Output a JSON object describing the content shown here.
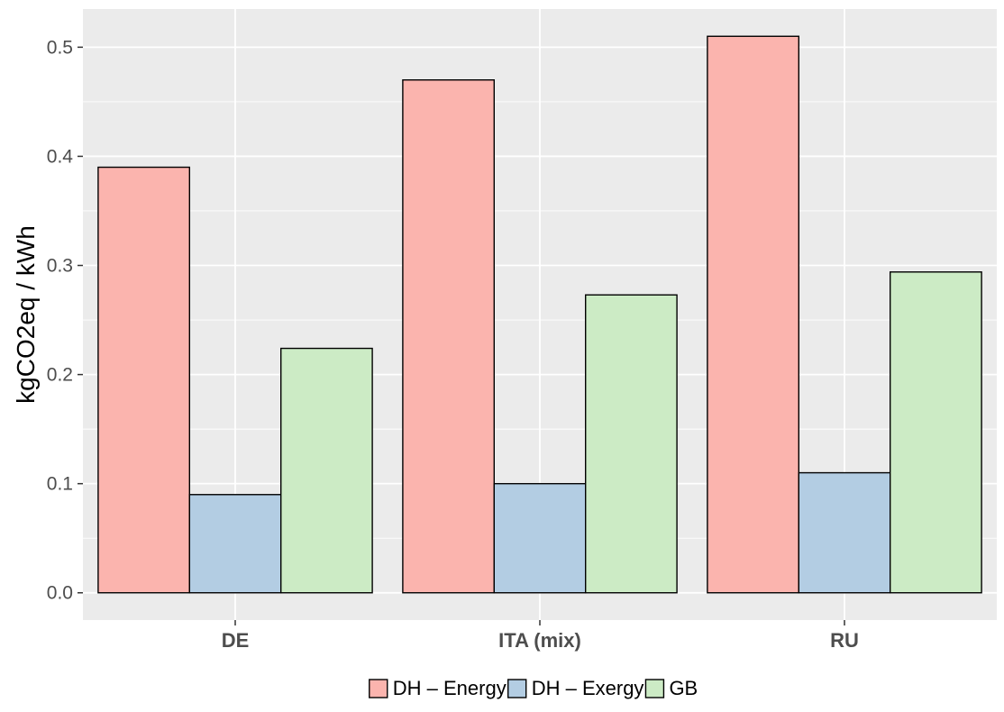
{
  "chart_data": {
    "type": "bar",
    "categories": [
      "DE",
      "ITA (mix)",
      "RU"
    ],
    "series": [
      {
        "name": "DH – Energy",
        "color": "#FBB4AE",
        "values": [
          0.39,
          0.47,
          0.51
        ]
      },
      {
        "name": "DH – Exergy",
        "color": "#B3CDE3",
        "values": [
          0.09,
          0.1,
          0.11
        ]
      },
      {
        "name": "GB",
        "color": "#CCEBC5",
        "values": [
          0.224,
          0.273,
          0.294
        ]
      }
    ],
    "title": "",
    "xlabel": "",
    "ylabel": "kgCO2eq / kWh",
    "ylim": [
      -0.025,
      0.535
    ],
    "yticks": [
      "0.0",
      "0.1",
      "0.2",
      "0.3",
      "0.4",
      "0.5"
    ],
    "grid": true,
    "legend_position": "bottom",
    "panel_background": "#EBEBEB",
    "gridline_color": "#FFFFFF",
    "bar_outline_color": "#000000"
  }
}
